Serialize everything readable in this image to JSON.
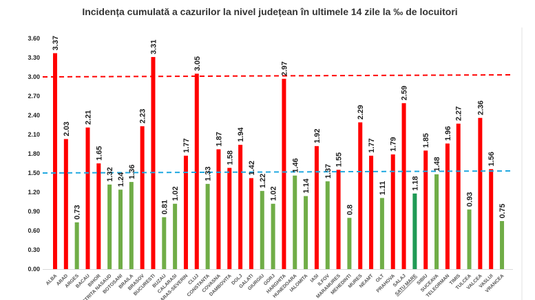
{
  "chart_data": {
    "type": "bar",
    "title": "Incidența cumulată a cazurilor la nivel județean în ultimele 14 zile la ‰ de locuitori",
    "xlabel": "",
    "ylabel": "",
    "ylim": [
      0,
      3.6
    ],
    "yticks": [
      "0.00",
      "0.30",
      "0.60",
      "0.90",
      "1.20",
      "1.50",
      "1.80",
      "2.10",
      "2.40",
      "2.70",
      "3.00",
      "3.30",
      "3.60"
    ],
    "grid": false,
    "colors": {
      "above": "#ff0000",
      "below": "#70ad47",
      "highlight": "#1f9a55",
      "highlight_label": "#ff0000",
      "threshold_high": "#ff0000",
      "threshold_low": "#1fa8e0"
    },
    "thresholds": [
      {
        "value": 3.0,
        "color": "#ff0000",
        "style": "dashed"
      },
      {
        "value": 1.5,
        "color": "#1fa8e0",
        "style": "dashed"
      }
    ],
    "highlight": "SATU MARE",
    "categories": [
      "ALBA",
      "ARAD",
      "ARGES",
      "BACAU",
      "BIHOR",
      "BISTRITA NASAUD",
      "BOTOSANI",
      "BRAILA",
      "BRASOV",
      "BUCURESTI",
      "BUZAU",
      "CALARASI",
      "CARAS-SEVERIN",
      "CLUJ",
      "CONSTANTA",
      "COVASNA",
      "DAMBOVITA",
      "DOLJ",
      "GALATI",
      "GIURGIU",
      "GORJ",
      "HARGHITA",
      "HUNEDOARA",
      "IALOMITA",
      "IASI",
      "ILFOV",
      "MARAMURES",
      "MEHEDINTI",
      "MURES",
      "NEAMT",
      "OLT",
      "PRAHOVA",
      "SALAJ",
      "SATU MARE",
      "SIBIU",
      "SUCEAVA",
      "TELEORMAN",
      "TIMIS",
      "TULCEA",
      "VALCEA",
      "VASLUI",
      "VRANCEA"
    ],
    "values": [
      3.37,
      2.03,
      0.73,
      2.21,
      1.65,
      1.32,
      1.24,
      1.36,
      2.23,
      3.31,
      0.81,
      1.02,
      1.77,
      3.05,
      1.33,
      1.87,
      1.58,
      1.94,
      1.42,
      1.22,
      1.02,
      2.97,
      1.46,
      1.14,
      1.92,
      1.37,
      1.55,
      0.8,
      2.29,
      1.77,
      1.11,
      1.79,
      2.59,
      1.18,
      1.85,
      1.48,
      1.96,
      2.27,
      0.93,
      2.36,
      1.56,
      0.75
    ],
    "value_labels": [
      "3.37",
      "2.03",
      "0.73",
      "2.21",
      "1.65",
      "1.32",
      "1.24",
      "1.36",
      "2.23",
      "3.31",
      "0.81",
      "1.02",
      "1.77",
      "3.05",
      "1.33",
      "1.87",
      "1.58",
      "1.94",
      "1.42",
      "1.22",
      "1.02",
      "2.97",
      "1.46",
      "1.14",
      "1.92",
      "1.37",
      "1.55",
      "0.8",
      "2.29",
      "1.77",
      "1.11",
      "1.79",
      "2.59",
      "1.18",
      "1.85",
      "1.48",
      "1.96",
      "2.27",
      "0.93",
      "2.36",
      "1.56",
      "0.75"
    ],
    "bar_colors": [
      "red",
      "red",
      "green",
      "red",
      "red",
      "green",
      "green",
      "green",
      "red",
      "red",
      "green",
      "green",
      "red",
      "red",
      "green",
      "red",
      "red",
      "red",
      "red",
      "green",
      "green",
      "red",
      "green",
      "green",
      "red",
      "green",
      "red",
      "green",
      "red",
      "red",
      "green",
      "red",
      "red",
      "highlight",
      "red",
      "green",
      "red",
      "red",
      "green",
      "red",
      "red",
      "green"
    ]
  }
}
